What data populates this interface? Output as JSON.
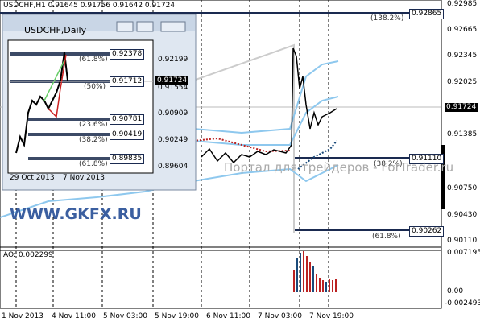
{
  "main": {
    "header": "USDCHF,H1  0.91645 0.91756 0.91642 0.91724",
    "price_axis": [
      "0.92985",
      "0.92665",
      "0.92345",
      "0.92025",
      "0.91385",
      "0.90750",
      "0.90430",
      "0.90110"
    ],
    "current_price": "0.91724",
    "level_labels": [
      "0.92865",
      "0.91110",
      "0.90262"
    ],
    "fib_labels": [
      "(138.2%)",
      "(38.2%)",
      "(61.8%)"
    ],
    "x_axis": [
      "1 Nov 2013",
      "4 Nov 11:00",
      "5 Nov 03:00",
      "5 Nov 19:00",
      "6 Nov 11:00",
      "7 Nov 03:00",
      "7 Nov 19:00"
    ]
  },
  "watermarks": [
    "Портал для трейдеров - ForTrader.ru",
    "WWW.GKFX.RU"
  ],
  "oscillator": {
    "label": "AO: 0.002299",
    "axis": [
      "0.007195",
      "0.00",
      "-0.002493"
    ]
  },
  "inset": {
    "title": "USDCHF,Daily",
    "price_axis": [
      "0.92199",
      "0.91554",
      "0.90909",
      "0.90249",
      "0.89604"
    ],
    "current_price": "0.91724",
    "level_labels": [
      "0.92378",
      "0.91712",
      "0.90781",
      "0.90419",
      "0.89835"
    ],
    "fib_labels": [
      "(61.8%)",
      "(50%)",
      "(23.6%)",
      "(38.2%)",
      "(61.8%)"
    ],
    "x_axis": [
      "29 Oct 2013",
      "7 Nov 2013"
    ]
  }
}
